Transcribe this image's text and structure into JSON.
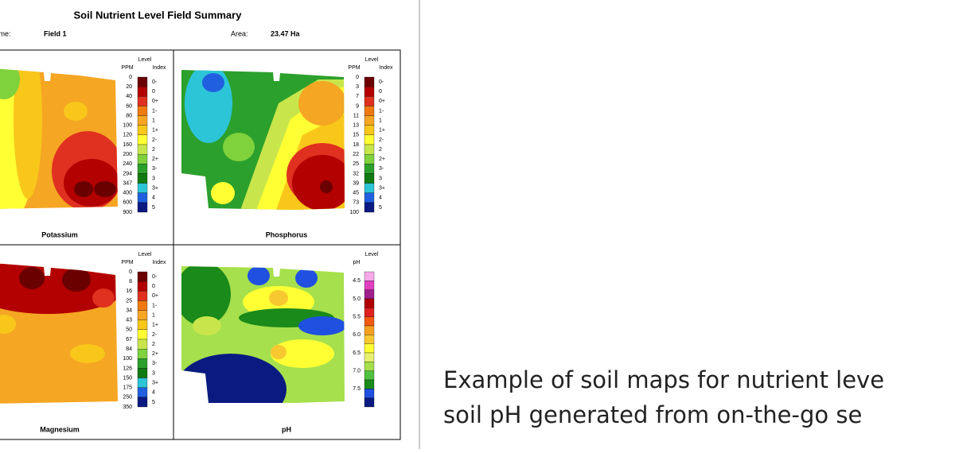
{
  "header": {
    "title": "Soil Nutrient Level Field Summary",
    "name_label": "Name:",
    "name_value": "Field 1",
    "area_label": "Area:",
    "area_value": "23.47 Ha"
  },
  "panels": [
    {
      "title": "Potassium",
      "level_label": "Level",
      "unit_label": "PPM",
      "index_label": "Index",
      "levels": [
        0,
        20,
        40,
        60,
        80,
        100,
        120,
        160,
        200,
        240,
        294,
        347,
        400,
        600,
        900
      ],
      "indices": [
        "0-",
        "0",
        "0+",
        "1-",
        "1",
        "1+",
        "2-",
        "2",
        "2+",
        "3-",
        "3",
        "3+",
        "4",
        "5"
      ],
      "colors": [
        "#6b0000",
        "#b30000",
        "#e03020",
        "#f07a10",
        "#f5a623",
        "#f8c71a",
        "#ffff33",
        "#c8e64c",
        "#7fd23c",
        "#2ca02c",
        "#127a12",
        "#2cc5d8",
        "#2060e0",
        "#0a1a80"
      ]
    },
    {
      "title": "Phosphorus",
      "level_label": "Level",
      "unit_label": "PPM",
      "index_label": "Index",
      "levels": [
        0,
        3,
        7,
        9,
        11,
        13,
        15,
        18,
        22,
        25,
        32,
        39,
        45,
        73,
        100
      ],
      "indices": [
        "0-",
        "0",
        "0+",
        "1-",
        "1",
        "1+",
        "2-",
        "2",
        "2+",
        "3-",
        "3",
        "3+",
        "4",
        "5"
      ],
      "colors": [
        "#6b0000",
        "#b30000",
        "#e03020",
        "#f07a10",
        "#f5a623",
        "#f8c71a",
        "#ffff33",
        "#c8e64c",
        "#7fd23c",
        "#2ca02c",
        "#127a12",
        "#2cc5d8",
        "#2060e0",
        "#0a1a80"
      ]
    },
    {
      "title": "Magnesium",
      "level_label": "Level",
      "unit_label": "PPM",
      "index_label": "Index",
      "levels": [
        0,
        8,
        16,
        25,
        34,
        43,
        50,
        67,
        84,
        100,
        126,
        150,
        175,
        250,
        350
      ],
      "indices": [
        "0-",
        "0",
        "0+",
        "1-",
        "1",
        "1+",
        "2-",
        "2",
        "2+",
        "3-",
        "3",
        "3+",
        "4",
        "5"
      ],
      "colors": [
        "#6b0000",
        "#b30000",
        "#e03020",
        "#f07a10",
        "#f5a623",
        "#f8c71a",
        "#ffff33",
        "#c8e64c",
        "#7fd23c",
        "#2ca02c",
        "#127a12",
        "#2cc5d8",
        "#2060e0",
        "#0a1a80"
      ]
    },
    {
      "title": "pH",
      "level_label": "Level",
      "unit_label": "pH",
      "levels": [
        "4.5",
        "5.0",
        "5.5",
        "6.0",
        "6.5",
        "7.0",
        "7.5"
      ],
      "colors": [
        "#f6a8e8",
        "#e040c0",
        "#a0208a",
        "#b00000",
        "#e02020",
        "#f05a10",
        "#f5a020",
        "#f8c830",
        "#ffff33",
        "#e8f070",
        "#a6e04c",
        "#50c040",
        "#1a8a1a",
        "#2050e0",
        "#0a1a80"
      ]
    }
  ],
  "caption": [
    "Example of soil maps for nutrient leve",
    "soil pH generated from on-the-go se"
  ]
}
